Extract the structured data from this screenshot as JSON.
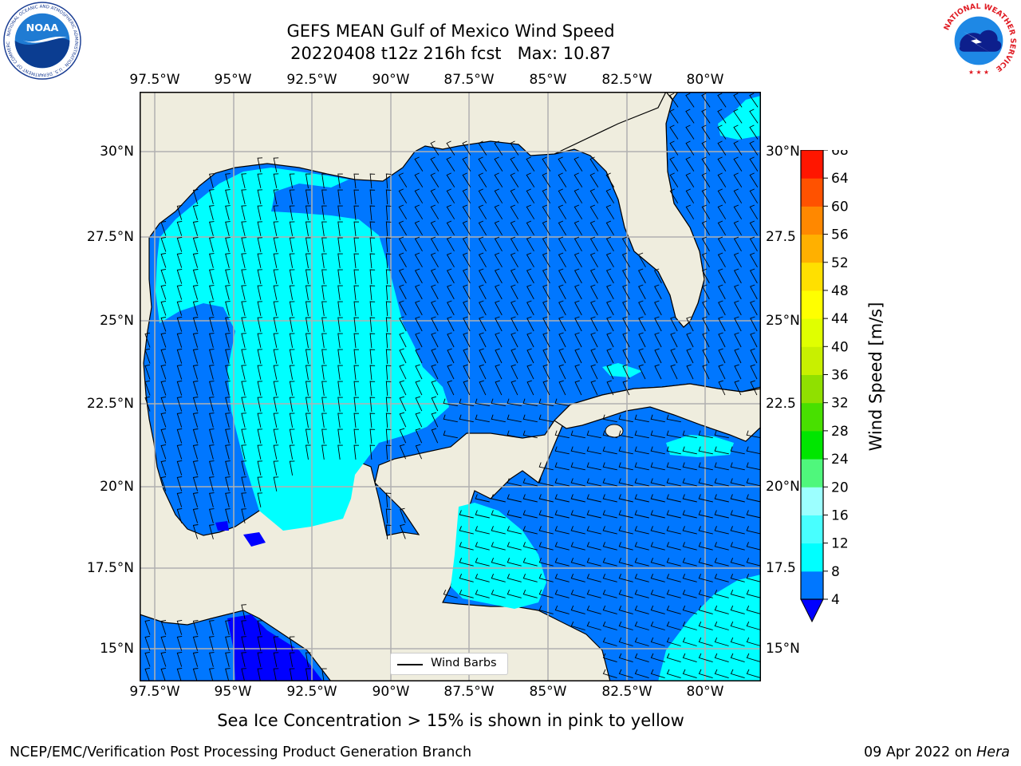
{
  "header": {
    "title_line1": "GEFS MEAN Gulf of Mexico Wind Speed",
    "title_line2": "20220408 t12z 216h fcst   Max: 10.87"
  },
  "logos": {
    "left": {
      "name": "noaa-logo",
      "ring_text": "NATIONAL OCEANIC AND ATMOSPHERIC ADMINISTRATION · U.S. DEPARTMENT OF COMMERCE",
      "center_text": "NOAA"
    },
    "right": {
      "name": "nws-logo",
      "ring_text": "NATIONAL WEATHER SERVICE"
    }
  },
  "map": {
    "lon_ticks": [
      "97.5°W",
      "95°W",
      "92.5°W",
      "90°W",
      "87.5°W",
      "85°W",
      "82.5°W",
      "80°W"
    ],
    "lat_ticks_left": [
      "30°N",
      "27.5°N",
      "25°N",
      "22.5°N",
      "20°N",
      "17.5°N",
      "15°N"
    ],
    "lat_ticks_right": [
      "30°N",
      "27.5",
      "25°N",
      "22.5",
      "20°N",
      "17.5",
      "15°N"
    ],
    "extent": {
      "lon_min": -98,
      "lon_max": -78.2,
      "lat_min": 14.1,
      "lat_max": 31.8
    },
    "grid": true,
    "land_color": "#efedde",
    "coastline_color": "#000000",
    "legend": {
      "label": "Wind Barbs",
      "placement": "lower-center"
    }
  },
  "colorbar": {
    "label": "Wind Speed [m/s]",
    "ticks": [
      "68",
      "64",
      "60",
      "56",
      "52",
      "48",
      "44",
      "40",
      "36",
      "32",
      "28",
      "24",
      "20",
      "16",
      "12",
      "8",
      "4"
    ],
    "levels": [
      4,
      8,
      12,
      16,
      20,
      24,
      28,
      32,
      36,
      40,
      44,
      48,
      52,
      56,
      60,
      64,
      68
    ],
    "colors": [
      "#0077ff",
      "#00ffff",
      "#48ffff",
      "#9cffff",
      "#4ff77c",
      "#00e600",
      "#48e000",
      "#90e000",
      "#c8f000",
      "#e0ff00",
      "#ffff00",
      "#ffe000",
      "#ffb000",
      "#ff8800",
      "#ff5200",
      "#ff1600"
    ],
    "under_color": "#0000ff",
    "extend": "min"
  },
  "chart_data": {
    "type": "heatmap",
    "variable": "Wind Speed [m/s]",
    "max": 10.87,
    "ranges_present": [
      "<4",
      "4-8",
      "8-12"
    ],
    "dominant_range": "4-8"
  },
  "subtitle": "Sea Ice Concentration > 15% is shown in pink to yellow",
  "footer": {
    "left": "NCEP/EMC/Verification Post Processing Product Generation Branch",
    "right_date": "09 Apr 2022 on",
    "right_machine": "Hera"
  }
}
